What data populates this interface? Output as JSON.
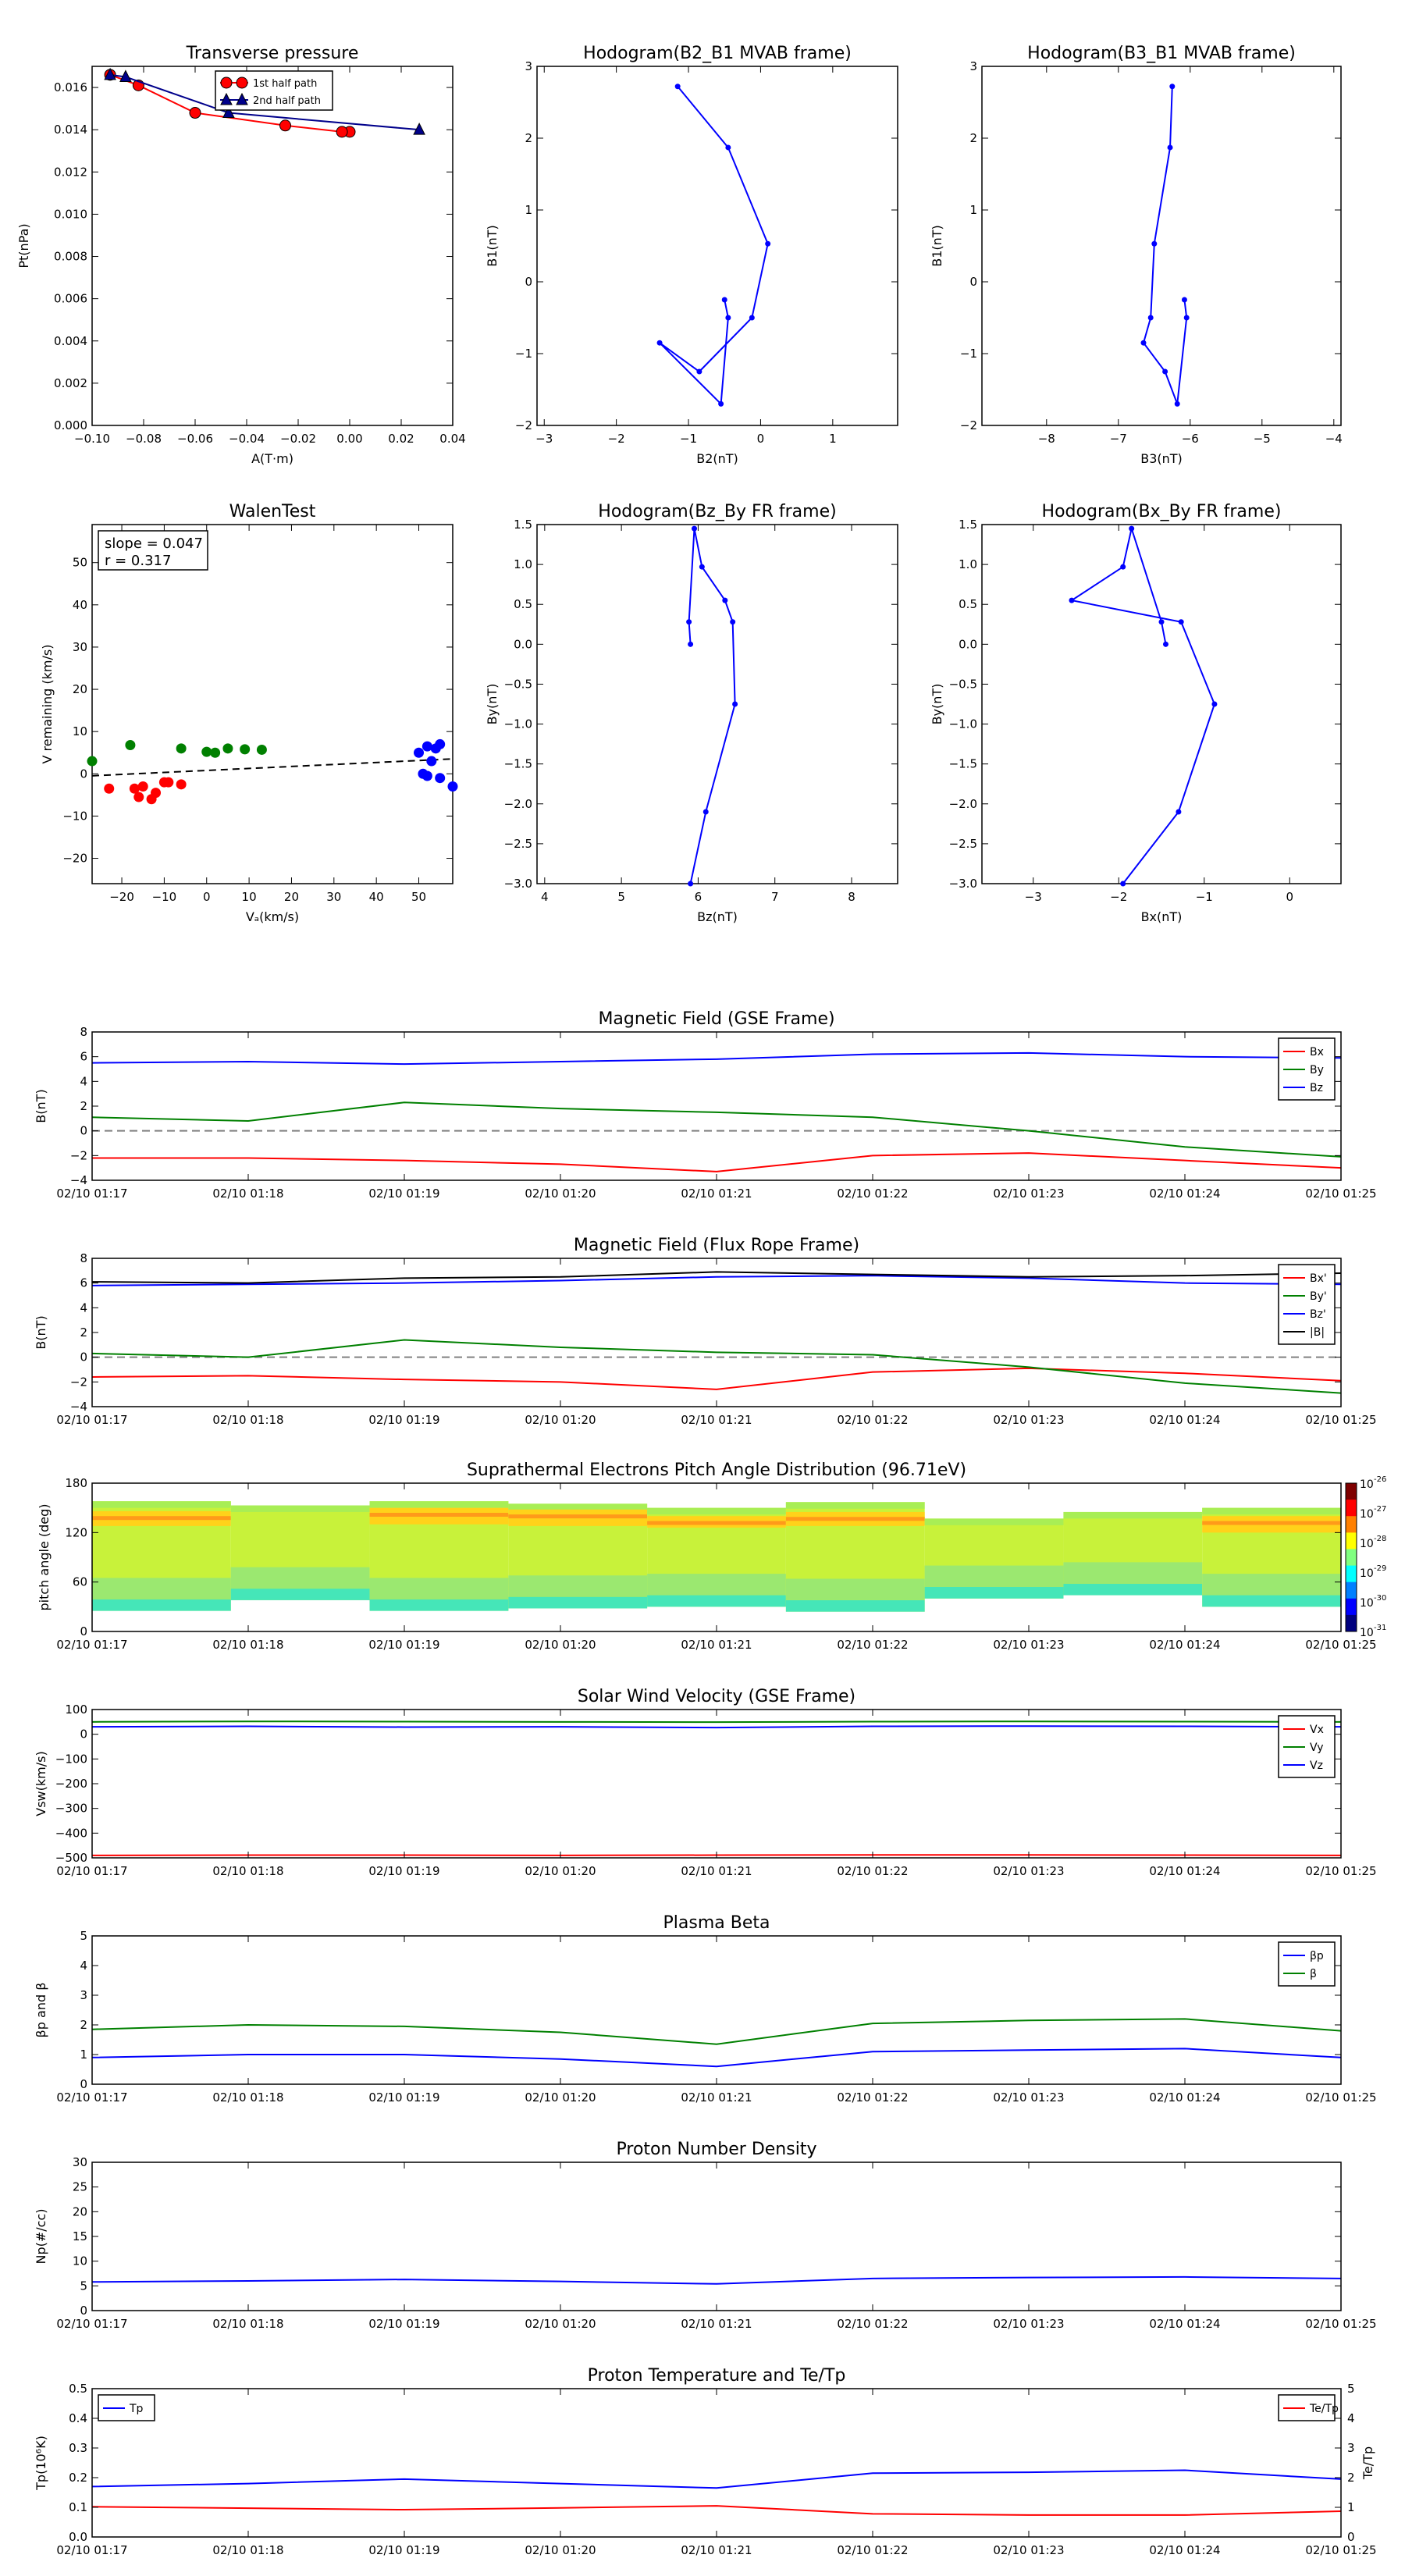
{
  "time_ticks": [
    "02/10 01:17",
    "02/10 01:18",
    "02/10 01:19",
    "02/10 01:20",
    "02/10 01:21",
    "02/10 01:22",
    "02/10 01:23",
    "02/10 01:24",
    "02/10 01:25"
  ],
  "colors": {
    "red": "#ff0000",
    "green": "#008000",
    "blue": "#0000ff",
    "black": "#000000",
    "navy": "#00008b"
  },
  "chart_data": [
    {
      "id": "transverse-pressure",
      "type": "line",
      "title": "Transverse pressure",
      "xlabel": "A(T·m)",
      "ylabel": "Pt(nPa)",
      "xlim": [
        -0.1,
        0.04
      ],
      "ylim": [
        0.0,
        0.017
      ],
      "xticks": [
        -0.1,
        -0.08,
        -0.06,
        -0.04,
        -0.02,
        0.0,
        0.02,
        0.04
      ],
      "xtick_labels": [
        "−0.10",
        "−0.08",
        "−0.06",
        "−0.04",
        "−0.02",
        "0.00",
        "0.02",
        "0.04"
      ],
      "yticks": [
        0,
        0.002,
        0.004,
        0.006,
        0.008,
        0.01,
        0.012,
        0.014,
        0.016
      ],
      "ytick_labels": [
        "0.000",
        "0.002",
        "0.004",
        "0.006",
        "0.008",
        "0.010",
        "0.012",
        "0.014",
        "0.016"
      ],
      "legend": "top-center",
      "series": [
        {
          "name": "1st half path",
          "color": "#ff0000",
          "marker": "circle",
          "x": [
            0.0,
            -0.003,
            -0.025,
            -0.06,
            -0.082,
            -0.093
          ],
          "y": [
            0.0139,
            0.0139,
            0.0142,
            0.0148,
            0.0161,
            0.0166
          ]
        },
        {
          "name": "2nd half path",
          "color": "#00008b",
          "marker": "triangle",
          "x": [
            -0.093,
            -0.087,
            -0.047,
            0.027
          ],
          "y": [
            0.0166,
            0.0165,
            0.0148,
            0.014
          ]
        }
      ]
    },
    {
      "id": "hodogram-b2-b1",
      "type": "line",
      "title": "Hodogram(B2_B1 MVAB frame)",
      "xlabel": "B2(nT)",
      "ylabel": "B1(nT)",
      "xlim": [
        -3.1,
        1.9
      ],
      "ylim": [
        -2,
        3
      ],
      "xticks": [
        -3,
        -2,
        -1,
        0,
        1
      ],
      "xtick_labels": [
        "−3",
        "−2",
        "−1",
        "0",
        "1"
      ],
      "yticks": [
        -2,
        -1,
        0,
        1,
        2,
        3
      ],
      "ytick_labels": [
        "−2",
        "−1",
        "0",
        "1",
        "2",
        "3"
      ],
      "series": [
        {
          "color": "#0000ff",
          "marker": "dot",
          "x": [
            -1.15,
            -0.45,
            0.1,
            -0.12,
            -0.85,
            -1.4,
            -0.55,
            -0.45,
            -0.5
          ],
          "y": [
            2.72,
            1.87,
            0.53,
            -0.5,
            -1.25,
            -0.85,
            -1.7,
            -0.5,
            -0.25
          ]
        }
      ]
    },
    {
      "id": "hodogram-b3-b1",
      "type": "line",
      "title": "Hodogram(B3_B1 MVAB frame)",
      "xlabel": "B3(nT)",
      "ylabel": "B1(nT)",
      "xlim": [
        -8.9,
        -3.9
      ],
      "ylim": [
        -2,
        3
      ],
      "xticks": [
        -8,
        -7,
        -6,
        -5,
        -4
      ],
      "xtick_labels": [
        "−8",
        "−7",
        "−6",
        "−5",
        "−4"
      ],
      "yticks": [
        -2,
        -1,
        0,
        1,
        2,
        3
      ],
      "ytick_labels": [
        "−2",
        "−1",
        "0",
        "1",
        "2",
        "3"
      ],
      "series": [
        {
          "color": "#0000ff",
          "marker": "dot",
          "x": [
            -6.25,
            -6.28,
            -6.5,
            -6.55,
            -6.65,
            -6.35,
            -6.18,
            -6.05,
            -6.08
          ],
          "y": [
            2.72,
            1.87,
            0.53,
            -0.5,
            -0.85,
            -1.25,
            -1.7,
            -0.5,
            -0.25
          ]
        }
      ]
    },
    {
      "id": "walen-test",
      "type": "scatter",
      "title": "WalenTest",
      "xlabel": "Vₐ(km/s)",
      "ylabel": "V remaining (km/s)",
      "xlim": [
        -27,
        58
      ],
      "ylim": [
        -26,
        59
      ],
      "xticks": [
        -20,
        -10,
        0,
        10,
        20,
        30,
        40,
        50
      ],
      "xtick_labels": [
        "−20",
        "−10",
        "0",
        "10",
        "20",
        "30",
        "40",
        "50"
      ],
      "yticks": [
        -20,
        -10,
        0,
        10,
        20,
        30,
        40,
        50
      ],
      "ytick_labels": [
        "−20",
        "−10",
        "0",
        "10",
        "20",
        "30",
        "40",
        "50"
      ],
      "annotation": [
        "slope = 0.047",
        "r = 0.317"
      ],
      "fit_line": {
        "slope": 0.047,
        "intercept": 0.8,
        "style": "dashed"
      },
      "series": [
        {
          "color": "#ff0000",
          "x": [
            -23,
            -17,
            -16,
            -15,
            -13,
            -12,
            -10,
            -9,
            -6
          ],
          "y": [
            -3.5,
            -3.5,
            -5.5,
            -3,
            -6,
            -4.5,
            -2,
            -2,
            -2.5
          ]
        },
        {
          "color": "#008000",
          "x": [
            -27,
            -18,
            -6,
            0,
            2,
            5,
            9,
            13
          ],
          "y": [
            3,
            6.8,
            6,
            5.2,
            5,
            6,
            5.8,
            5.7
          ]
        },
        {
          "color": "#0000ff",
          "x": [
            50,
            51,
            52,
            53,
            54,
            55,
            55,
            58,
            52
          ],
          "y": [
            5,
            0,
            6.5,
            3,
            6,
            -1,
            7,
            -3,
            -0.5
          ]
        }
      ]
    },
    {
      "id": "hodogram-bz-by",
      "type": "line",
      "title": "Hodogram(Bz_By FR frame)",
      "xlabel": "Bz(nT)",
      "ylabel": "By(nT)",
      "xlim": [
        3.9,
        8.6
      ],
      "ylim": [
        -3,
        1.5
      ],
      "xticks": [
        4,
        5,
        6,
        7,
        8
      ],
      "xtick_labels": [
        "4",
        "5",
        "6",
        "7",
        "8"
      ],
      "yticks": [
        -3.0,
        -2.5,
        -2.0,
        -1.5,
        -1.0,
        -0.5,
        0.0,
        0.5,
        1.0,
        1.5
      ],
      "ytick_labels": [
        "−3.0",
        "−2.5",
        "−2.0",
        "−1.5",
        "−1.0",
        "−0.5",
        "0.0",
        "0.5",
        "1.0",
        "1.5"
      ],
      "series": [
        {
          "color": "#0000ff",
          "marker": "dot",
          "x": [
            5.9,
            6.1,
            6.48,
            6.45,
            6.35,
            6.05,
            5.95,
            5.88,
            5.9
          ],
          "y": [
            -3.0,
            -2.1,
            -0.75,
            0.28,
            0.55,
            0.97,
            1.45,
            0.28,
            0.0
          ]
        }
      ]
    },
    {
      "id": "hodogram-bx-by",
      "type": "line",
      "title": "Hodogram(Bx_By FR frame)",
      "xlabel": "Bx(nT)",
      "ylabel": "By(nT)",
      "xlim": [
        -3.6,
        0.6
      ],
      "ylim": [
        -3,
        1.5
      ],
      "xticks": [
        -3,
        -2,
        -1,
        0
      ],
      "xtick_labels": [
        "−3",
        "−2",
        "−1",
        "0"
      ],
      "yticks": [
        -3.0,
        -2.5,
        -2.0,
        -1.5,
        -1.0,
        -0.5,
        0.0,
        0.5,
        1.0,
        1.5
      ],
      "ytick_labels": [
        "−3.0",
        "−2.5",
        "−2.0",
        "−1.5",
        "−1.0",
        "−0.5",
        "0.0",
        "0.5",
        "1.0",
        "1.5"
      ],
      "series": [
        {
          "color": "#0000ff",
          "marker": "dot",
          "x": [
            -1.95,
            -1.3,
            -0.88,
            -1.27,
            -2.55,
            -1.95,
            -1.85,
            -1.5,
            -1.45
          ],
          "y": [
            -3.0,
            -2.1,
            -0.75,
            0.28,
            0.55,
            0.97,
            1.45,
            0.28,
            0.0
          ]
        }
      ]
    },
    {
      "id": "magnetic-field-gse",
      "type": "line",
      "title": "Magnetic Field (GSE Frame)",
      "ylabel": "B(nT)",
      "ylim": [
        -4,
        8
      ],
      "yticks": [
        -4,
        -2,
        0,
        2,
        4,
        6,
        8
      ],
      "ytick_labels": [
        "−4",
        "−2",
        "0",
        "2",
        "4",
        "6",
        "8"
      ],
      "zero_line": true,
      "legend": "top-right",
      "series": [
        {
          "name": "Bx",
          "color": "#ff0000",
          "values": [
            -2.2,
            -2.2,
            -2.4,
            -2.7,
            -3.3,
            -2.0,
            -1.8,
            -2.4,
            -3.0
          ]
        },
        {
          "name": "By",
          "color": "#008000",
          "values": [
            1.1,
            0.8,
            2.3,
            1.8,
            1.5,
            1.1,
            0.0,
            -1.3,
            -2.1
          ]
        },
        {
          "name": "Bz",
          "color": "#0000ff",
          "values": [
            5.5,
            5.6,
            5.4,
            5.6,
            5.8,
            6.2,
            6.3,
            6.0,
            5.9
          ]
        }
      ]
    },
    {
      "id": "magnetic-field-fr",
      "type": "line",
      "title": "Magnetic Field (Flux Rope Frame)",
      "ylabel": "B(nT)",
      "ylim": [
        -4,
        8
      ],
      "yticks": [
        -4,
        -2,
        0,
        2,
        4,
        6,
        8
      ],
      "ytick_labels": [
        "−4",
        "−2",
        "0",
        "2",
        "4",
        "6",
        "8"
      ],
      "zero_line": true,
      "legend": "top-right",
      "series": [
        {
          "name": "Bx'",
          "color": "#ff0000",
          "values": [
            -1.6,
            -1.5,
            -1.8,
            -2.0,
            -2.6,
            -1.2,
            -0.9,
            -1.3,
            -1.9
          ]
        },
        {
          "name": "By'",
          "color": "#008000",
          "values": [
            0.3,
            0.0,
            1.4,
            0.8,
            0.4,
            0.2,
            -0.8,
            -2.1,
            -2.9
          ]
        },
        {
          "name": "Bz'",
          "color": "#0000ff",
          "values": [
            5.8,
            5.9,
            6.0,
            6.2,
            6.5,
            6.6,
            6.4,
            6.0,
            5.9
          ]
        },
        {
          "name": "|B|",
          "color": "#000000",
          "values": [
            6.1,
            6.0,
            6.4,
            6.5,
            6.9,
            6.7,
            6.5,
            6.6,
            6.8
          ]
        }
      ]
    },
    {
      "id": "pitch-angle",
      "type": "heatmap",
      "title": "Suprathermal Electrons Pitch Angle Distribution (96.71eV)",
      "ylabel": "pitch angle (deg)",
      "ylim": [
        0,
        180
      ],
      "yticks": [
        0,
        60,
        120,
        180
      ],
      "ytick_labels": [
        "0",
        "60",
        "120",
        "180"
      ],
      "colorbar_ticks": [
        "10",
        "10",
        "10",
        "10",
        "10",
        "10"
      ],
      "colorbar_exponents": [
        "-26",
        "-27",
        "-28",
        "-29",
        "-30",
        "-31"
      ],
      "columns": [
        {
          "top": 158,
          "bottom": 25,
          "hot": [
            128,
            146
          ]
        },
        {
          "top": 153,
          "bottom": 38,
          "hot": []
        },
        {
          "top": 158,
          "bottom": 25,
          "hot": [
            130,
            150
          ]
        },
        {
          "top": 155,
          "bottom": 28,
          "hot": [
            128,
            148
          ]
        },
        {
          "top": 150,
          "bottom": 30,
          "hot": [
            126,
            140
          ]
        },
        {
          "top": 157,
          "bottom": 24,
          "hot": [
            128,
            145
          ]
        },
        {
          "top": 137,
          "bottom": 40,
          "hot": []
        },
        {
          "top": 145,
          "bottom": 44,
          "hot": []
        },
        {
          "top": 150,
          "bottom": 30,
          "hot": [
            120,
            140
          ]
        }
      ]
    },
    {
      "id": "solar-wind-velocity",
      "type": "line",
      "title": "Solar Wind Velocity (GSE Frame)",
      "ylabel": "Vsw(km/s)",
      "ylim": [
        -500,
        100
      ],
      "yticks": [
        -500,
        -400,
        -300,
        -200,
        -100,
        0,
        100
      ],
      "ytick_labels": [
        "−500",
        "−400",
        "−300",
        "−200",
        "−100",
        "0",
        "100"
      ],
      "legend": "top-right",
      "series": [
        {
          "name": "Vx",
          "color": "#ff0000",
          "values": [
            -490,
            -489,
            -489,
            -490,
            -489,
            -488,
            -488,
            -489,
            -490
          ]
        },
        {
          "name": "Vy",
          "color": "#008000",
          "values": [
            50,
            52,
            51,
            50,
            49,
            51,
            52,
            51,
            50
          ]
        },
        {
          "name": "Vz",
          "color": "#0000ff",
          "values": [
            30,
            32,
            29,
            30,
            27,
            32,
            33,
            32,
            30
          ]
        }
      ]
    },
    {
      "id": "plasma-beta",
      "type": "line",
      "title": "Plasma Beta",
      "ylabel": "βp and β",
      "ylim": [
        0,
        5
      ],
      "yticks": [
        0,
        1,
        2,
        3,
        4,
        5
      ],
      "ytick_labels": [
        "0",
        "1",
        "2",
        "3",
        "4",
        "5"
      ],
      "legend": "top-right",
      "series": [
        {
          "name": "βp",
          "color": "#0000ff",
          "values": [
            0.9,
            1.0,
            1.0,
            0.85,
            0.6,
            1.1,
            1.15,
            1.2,
            0.9
          ]
        },
        {
          "name": "β",
          "color": "#008000",
          "values": [
            1.85,
            2.0,
            1.95,
            1.75,
            1.35,
            2.05,
            2.15,
            2.2,
            1.8
          ]
        }
      ]
    },
    {
      "id": "proton-density",
      "type": "line",
      "title": "Proton Number Density",
      "ylabel": "Np(#/cc)",
      "ylim": [
        0,
        30
      ],
      "yticks": [
        0,
        5,
        10,
        15,
        20,
        25,
        30
      ],
      "ytick_labels": [
        "0",
        "5",
        "10",
        "15",
        "20",
        "25",
        "30"
      ],
      "series": [
        {
          "color": "#0000ff",
          "values": [
            5.8,
            6.0,
            6.3,
            5.9,
            5.4,
            6.5,
            6.7,
            6.8,
            6.5
          ]
        }
      ]
    },
    {
      "id": "proton-temperature",
      "type": "line",
      "title": "Proton Temperature and Te/Tp",
      "ylabel": "Tp(10⁶K)",
      "ylabel_right": "Te/Tp",
      "ylim": [
        0,
        0.5
      ],
      "yticks": [
        0,
        0.1,
        0.2,
        0.3,
        0.4,
        0.5
      ],
      "ytick_labels": [
        "0.0",
        "0.1",
        "0.2",
        "0.3",
        "0.4",
        "0.5"
      ],
      "ylim_right": [
        0,
        5
      ],
      "yticks_right": [
        0,
        1,
        2,
        3,
        4,
        5
      ],
      "ytick_labels_right": [
        "0",
        "1",
        "2",
        "3",
        "4",
        "5"
      ],
      "series": [
        {
          "name": "Tp",
          "color": "#0000ff",
          "axis": "left",
          "values": [
            0.17,
            0.18,
            0.195,
            0.18,
            0.165,
            0.215,
            0.218,
            0.225,
            0.195
          ]
        },
        {
          "name": "Te/Tp",
          "color": "#ff0000",
          "axis": "right",
          "values": [
            1.02,
            0.97,
            0.92,
            0.98,
            1.05,
            0.78,
            0.74,
            0.74,
            0.87
          ]
        }
      ]
    }
  ]
}
